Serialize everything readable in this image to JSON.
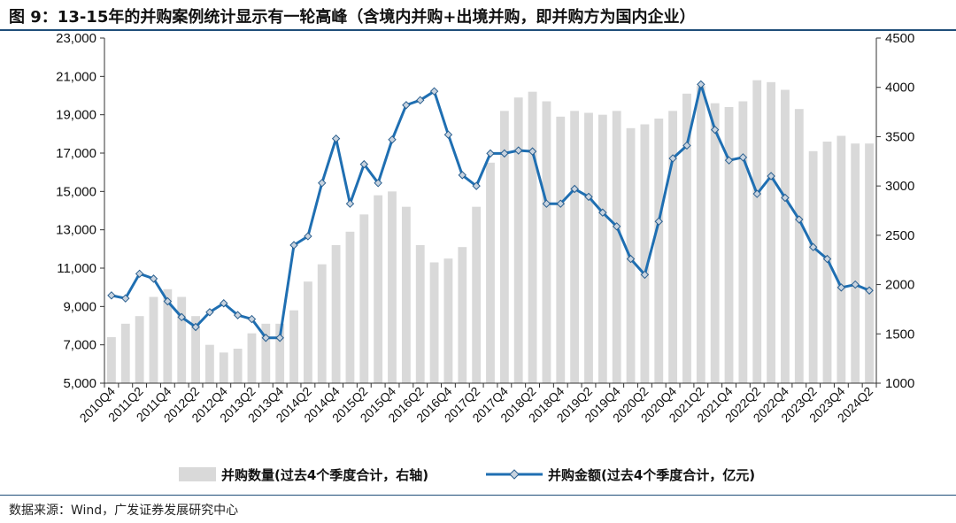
{
  "title": "图 9：13-15年的并购案例统计显示有一轮高峰（含境内并购+出境并购，即并购方为国内企业）",
  "source": "数据来源：Wind，广发证券发展研究中心",
  "chart_data": {
    "type": "bar",
    "x": [
      "2010Q4",
      "2011Q1",
      "2011Q2",
      "2011Q3",
      "2011Q4",
      "2012Q1",
      "2012Q2",
      "2012Q3",
      "2012Q4",
      "2013Q1",
      "2013Q2",
      "2013Q3",
      "2013Q4",
      "2014Q1",
      "2014Q2",
      "2014Q3",
      "2014Q4",
      "2015Q1",
      "2015Q2",
      "2015Q3",
      "2015Q4",
      "2016Q1",
      "2016Q2",
      "2016Q3",
      "2016Q4",
      "2017Q1",
      "2017Q2",
      "2017Q3",
      "2017Q4",
      "2018Q1",
      "2018Q2",
      "2018Q3",
      "2018Q4",
      "2019Q1",
      "2019Q2",
      "2019Q3",
      "2019Q4",
      "2020Q1",
      "2020Q2",
      "2020Q3",
      "2020Q4",
      "2021Q1",
      "2021Q2",
      "2021Q3",
      "2021Q4",
      "2022Q1",
      "2022Q2",
      "2022Q3",
      "2022Q4",
      "2023Q1",
      "2023Q2",
      "2023Q3",
      "2023Q4",
      "2024Q1",
      "2024Q2"
    ],
    "x_tick_labels": [
      "2010Q4",
      "2011Q2",
      "2011Q4",
      "2012Q2",
      "2012Q4",
      "2013Q2",
      "2013Q4",
      "2014Q2",
      "2014Q4",
      "2015Q2",
      "2015Q4",
      "2016Q2",
      "2016Q4",
      "2017Q2",
      "2017Q4",
      "2018Q2",
      "2018Q4",
      "2019Q2",
      "2019Q4",
      "2020Q2",
      "2020Q4",
      "2021Q2",
      "2021Q4",
      "2022Q2",
      "2022Q4",
      "2023Q2",
      "2023Q4",
      "2024Q2"
    ],
    "series": [
      {
        "name": "并购数量(过去4个季度合计，右轴)",
        "type": "bar",
        "axis": "left",
        "color": "#d9d9d9",
        "values": [
          7400,
          8100,
          8500,
          9500,
          9900,
          9500,
          8500,
          7000,
          6600,
          6800,
          7600,
          8100,
          8100,
          8800,
          10300,
          11200,
          12200,
          12900,
          13800,
          14800,
          15000,
          14200,
          12200,
          11300,
          11500,
          12100,
          14200,
          16500,
          19200,
          19900,
          20200,
          19700,
          18900,
          19200,
          19100,
          19000,
          19200,
          18300,
          18500,
          18800,
          19200,
          20100,
          20500,
          19600,
          19400,
          19700,
          20800,
          20700,
          20300,
          19300,
          17100,
          17600,
          17900,
          17500,
          17500
        ]
      },
      {
        "name": "并购金额(过去4个季度合计，亿元)",
        "type": "line",
        "axis": "right",
        "color": "#1f6fb2",
        "values": [
          1890,
          1860,
          2110,
          2060,
          1830,
          1670,
          1570,
          1720,
          1810,
          1690,
          1650,
          1460,
          1460,
          2400,
          2490,
          3030,
          3480,
          2820,
          3220,
          3030,
          3470,
          3820,
          3870,
          3960,
          3520,
          3110,
          3000,
          3330,
          3330,
          3360,
          3350,
          2820,
          2820,
          2970,
          2890,
          2730,
          2590,
          2260,
          2100,
          2640,
          3280,
          3410,
          4030,
          3570,
          3260,
          3290,
          2920,
          3100,
          2880,
          2660,
          2380,
          2260,
          1970,
          2000,
          1940
        ]
      }
    ],
    "left_axis": {
      "min": 5000,
      "max": 23000,
      "ticks": [
        "5,000",
        "7,000",
        "9,000",
        "11,000",
        "13,000",
        "15,000",
        "17,000",
        "19,000",
        "21,000",
        "23,000"
      ]
    },
    "right_axis": {
      "min": 1000,
      "max": 4500,
      "ticks": [
        "1000",
        "1500",
        "2000",
        "2500",
        "3000",
        "3500",
        "4000",
        "4500"
      ]
    },
    "grid": false,
    "legend_position": "bottom"
  }
}
